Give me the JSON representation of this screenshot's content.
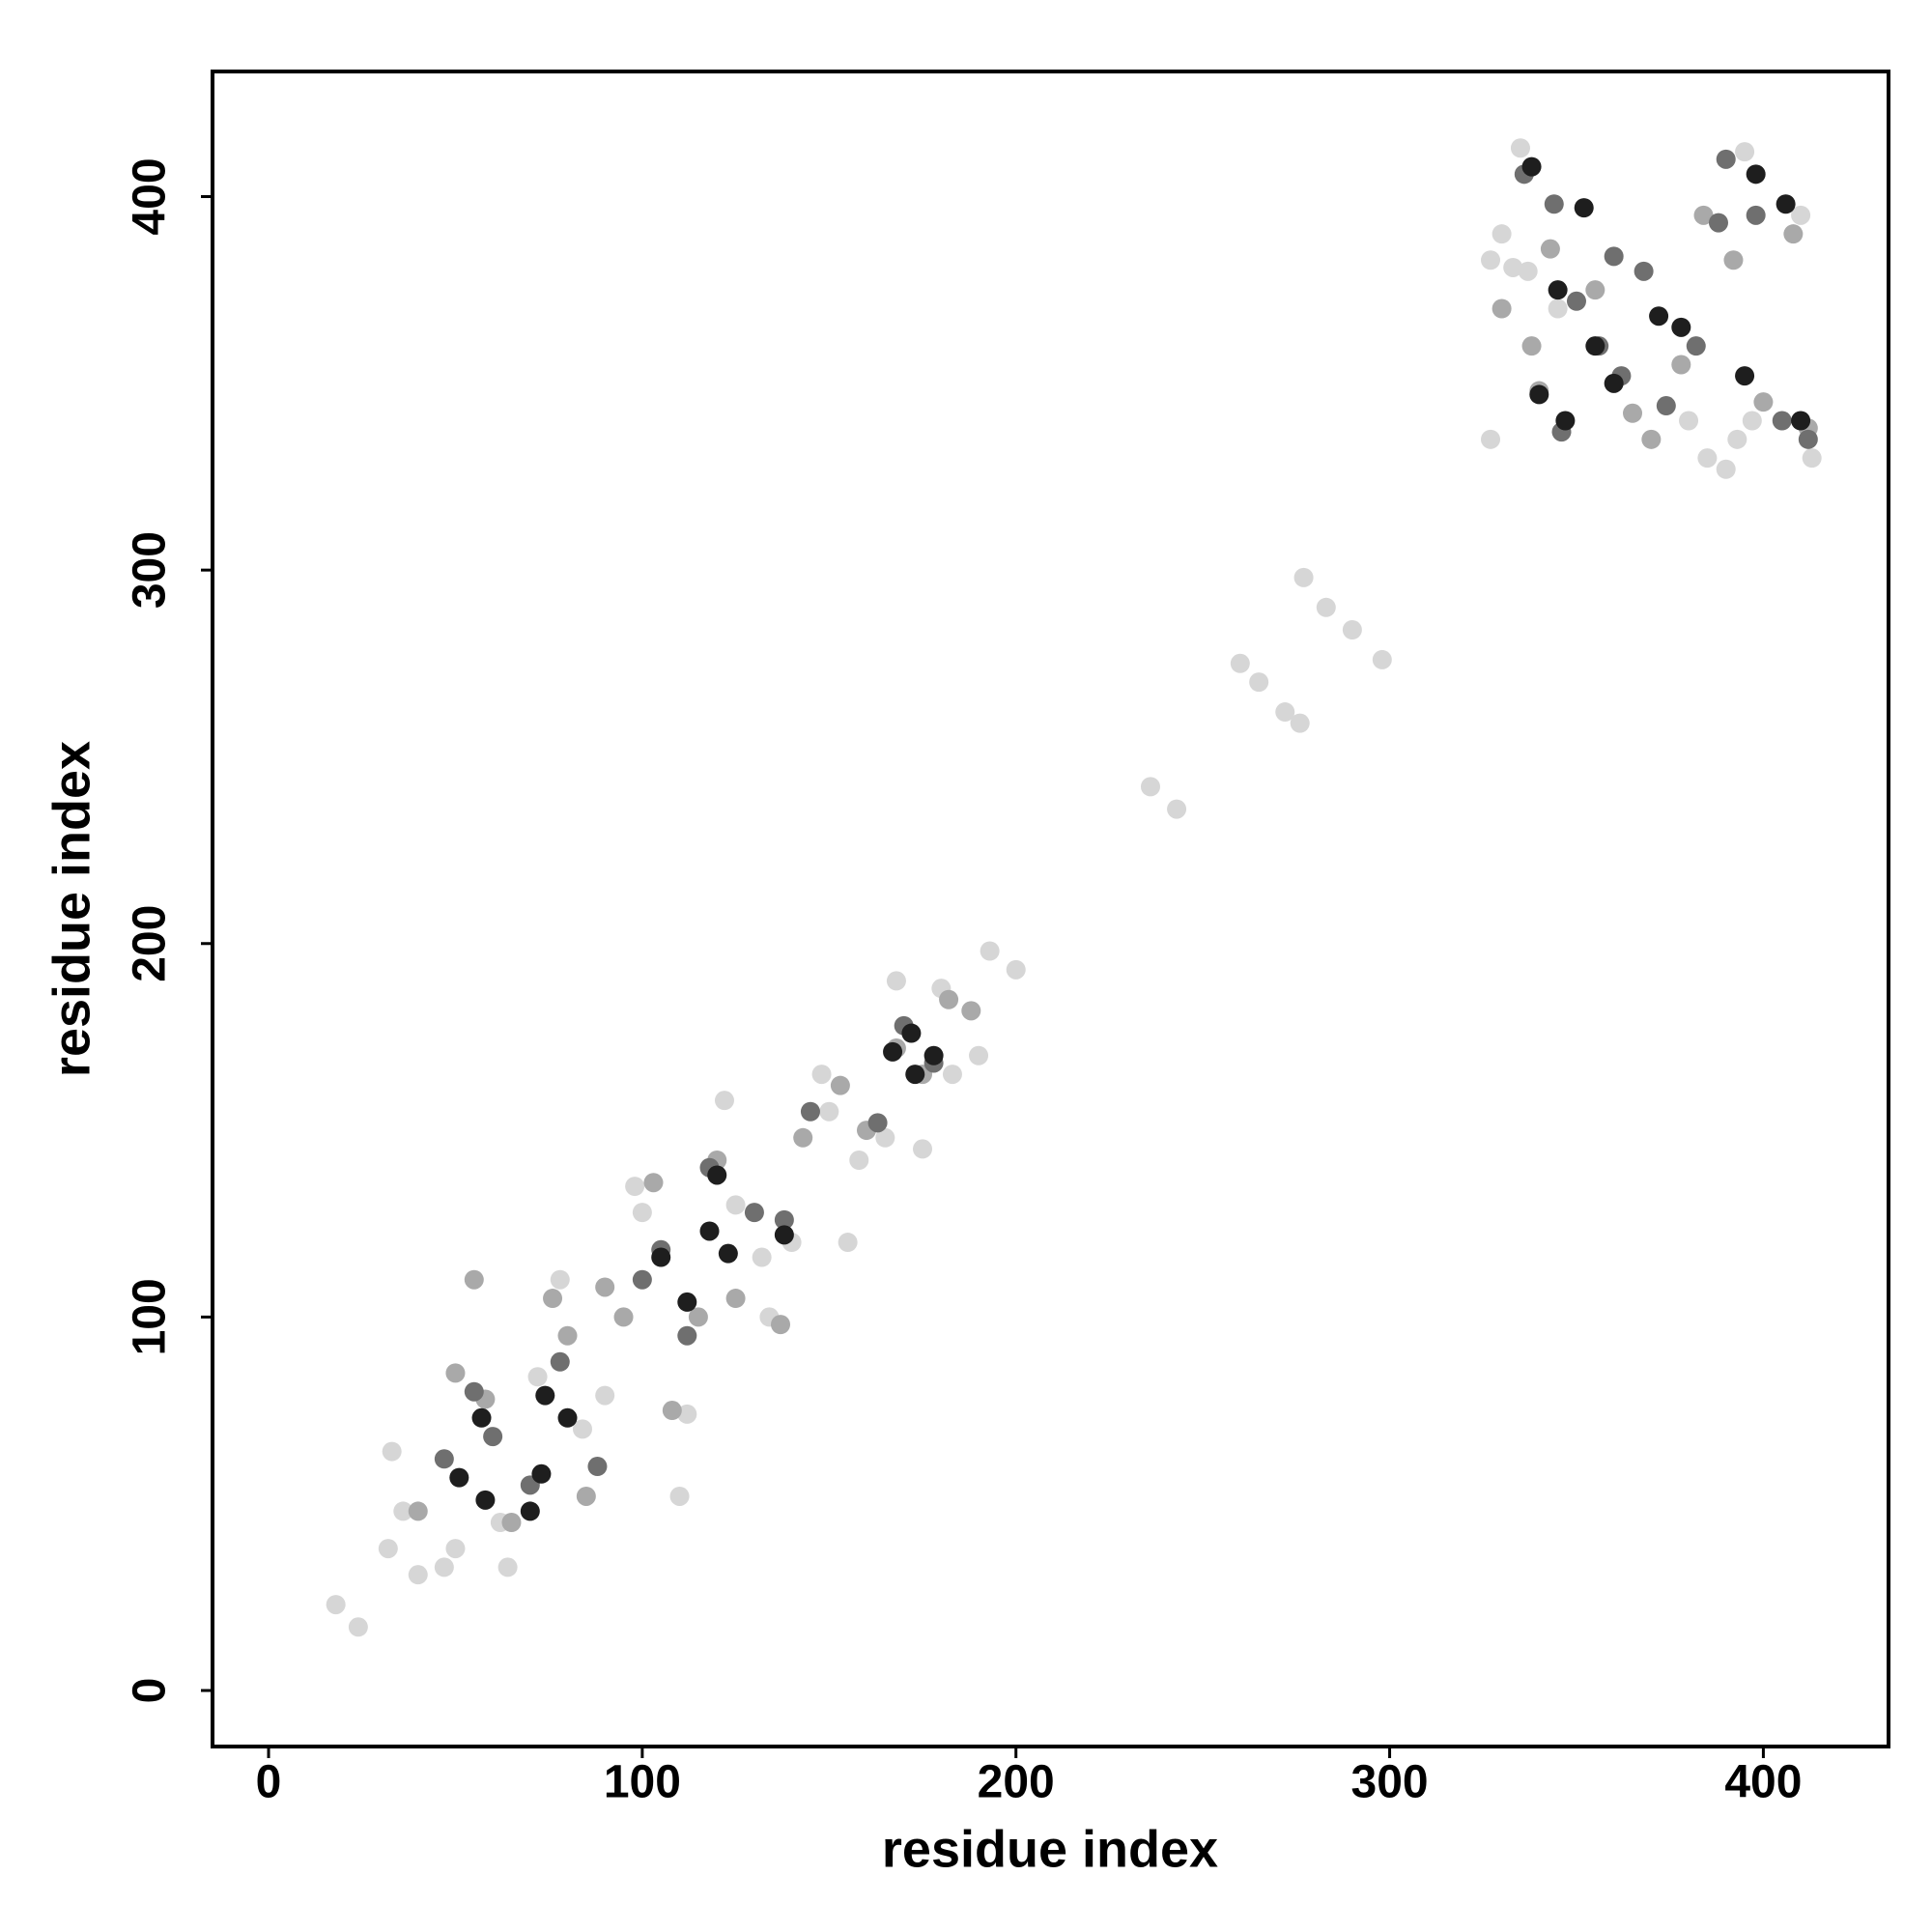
{
  "chart_data": {
    "type": "scatter",
    "x_label": "residue index",
    "y_label": "residue index",
    "xlim": [
      -15,
      433.5
    ],
    "ylim": [
      -15,
      433.5
    ],
    "xticks": [
      0,
      100,
      200,
      300,
      400
    ],
    "yticks": [
      0,
      100,
      200,
      300,
      400
    ],
    "grid": false,
    "series": [
      {
        "color": "#d6d6d6",
        "x": [
          18,
          24,
          33,
          36,
          32,
          40,
          47,
          50,
          62,
          64,
          72,
          78,
          84,
          90,
          98,
          100,
          110,
          112,
          122,
          125,
          132,
          134,
          140,
          148,
          150,
          155,
          158,
          165,
          168,
          175,
          180,
          183,
          190,
          193,
          200,
          236,
          243,
          260,
          265,
          272,
          276,
          277,
          283,
          290,
          298,
          327,
          330,
          335,
          337,
          345,
          327,
          385,
          390,
          393,
          397,
          413,
          410,
          395,
          380,
          333
        ],
        "values": [
          23,
          17,
          64,
          48,
          38,
          31,
          33,
          38,
          45,
          33,
          84,
          110,
          70,
          79,
          135,
          128,
          52,
          74,
          158,
          130,
          116,
          100,
          120,
          165,
          155,
          120,
          142,
          148,
          190,
          145,
          188,
          165,
          170,
          198,
          193,
          242,
          236,
          275,
          270,
          262,
          259,
          298,
          290,
          284,
          276,
          383,
          390,
          413,
          380,
          370,
          335,
          330,
          327,
          335,
          340,
          330,
          395,
          412,
          340,
          381
        ]
      },
      {
        "color": "#a9a9a9",
        "x": [
          40,
          50,
          55,
          58,
          65,
          76,
          80,
          85,
          90,
          95,
          103,
          108,
          115,
          120,
          125,
          137,
          143,
          153,
          160,
          168,
          175,
          182,
          188,
          338,
          343,
          355,
          365,
          370,
          378,
          384,
          392,
          400,
          408,
          412,
          330,
          340
        ],
        "values": [
          48,
          85,
          110,
          78,
          45,
          105,
          95,
          52,
          108,
          100,
          136,
          75,
          100,
          142,
          105,
          98,
          148,
          162,
          150,
          172,
          165,
          185,
          182,
          360,
          386,
          375,
          342,
          335,
          355,
          395,
          383,
          345,
          390,
          338,
          370,
          348
        ]
      },
      {
        "color": "#6f6f6f",
        "x": [
          47,
          55,
          60,
          70,
          78,
          88,
          100,
          105,
          112,
          118,
          130,
          138,
          145,
          163,
          170,
          178,
          336,
          344,
          350,
          356,
          362,
          368,
          374,
          382,
          390,
          398,
          405,
          412,
          388,
          360,
          346
        ],
        "values": [
          62,
          80,
          68,
          55,
          88,
          60,
          110,
          118,
          95,
          140,
          128,
          126,
          155,
          152,
          178,
          168,
          406,
          398,
          372,
          360,
          352,
          380,
          344,
          360,
          410,
          395,
          340,
          335,
          393,
          384,
          337
        ]
      },
      {
        "color": "#1e1e1e",
        "x": [
          51,
          57,
          58,
          70,
          73,
          74,
          80,
          105,
          112,
          118,
          123,
          120,
          138,
          167,
          172,
          173,
          178,
          338,
          352,
          345,
          360,
          372,
          378,
          395,
          398,
          406,
          410,
          340,
          347,
          355
        ],
        "values": [
          57,
          73,
          51,
          48,
          58,
          79,
          73,
          116,
          104,
          123,
          117,
          138,
          122,
          171,
          176,
          165,
          170,
          408,
          397,
          375,
          350,
          368,
          365,
          352,
          406,
          398,
          340,
          347,
          340,
          360
        ]
      }
    ]
  }
}
